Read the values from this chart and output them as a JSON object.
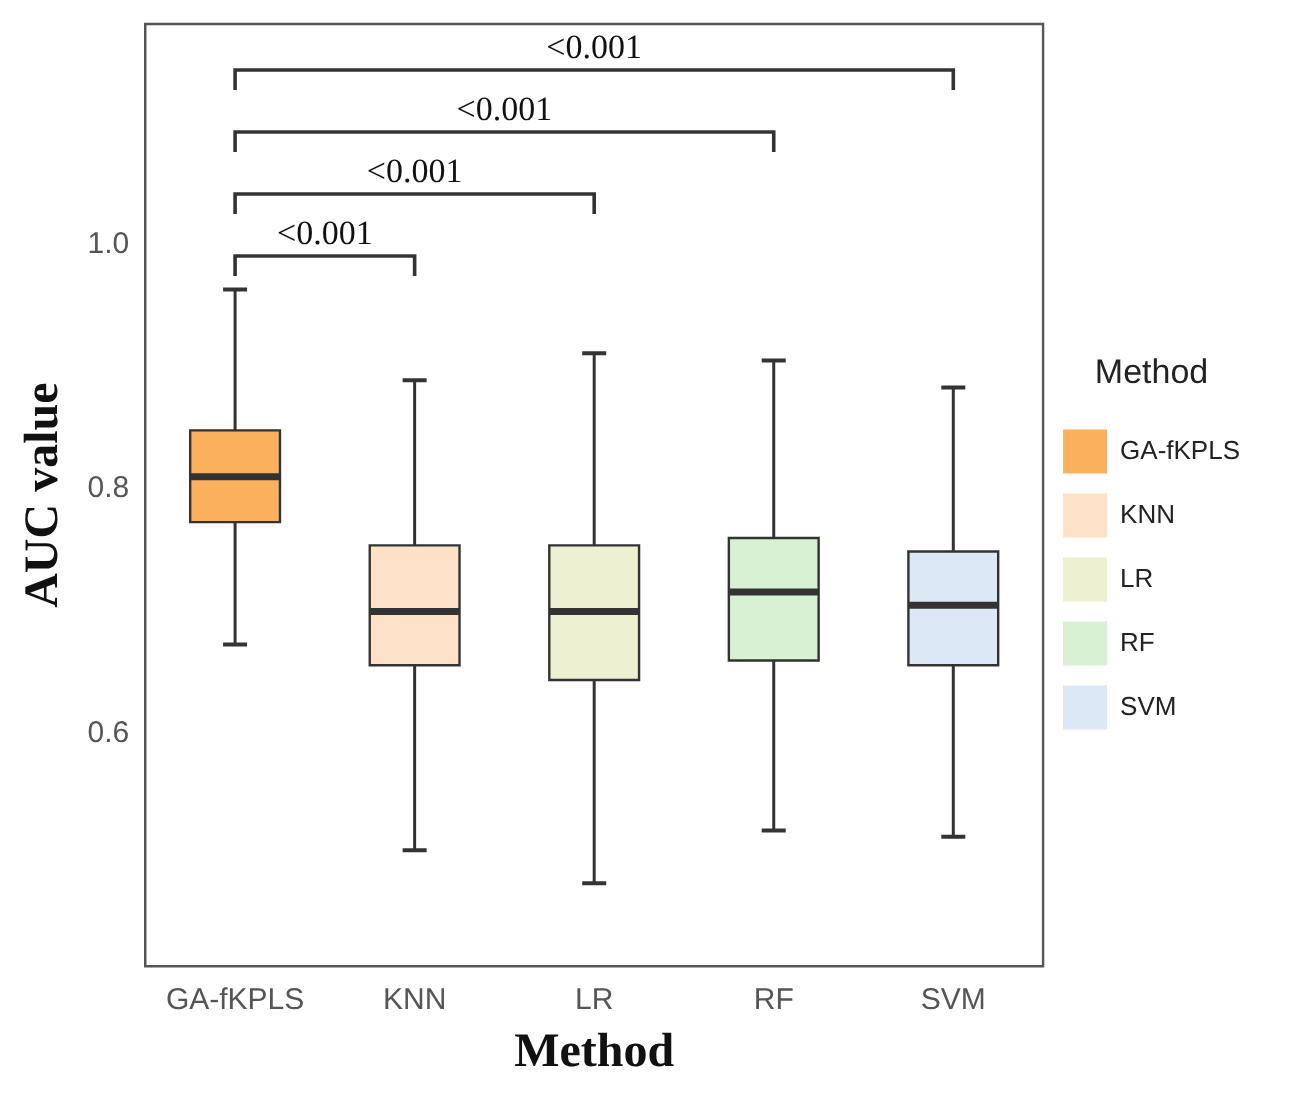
{
  "chart_data": {
    "type": "box",
    "xlabel": "Method",
    "ylabel": "AUC value",
    "legend_title": "Method",
    "legend": "right",
    "grid": false,
    "categories": [
      "GA-fKPLS",
      "KNN",
      "LR",
      "RF",
      "SVM"
    ],
    "series": [
      {
        "name": "GA-fKPLS",
        "color": "#fbb05e",
        "boxes": [
          {
            "low": 0.673,
            "q1": 0.773,
            "median": 0.81,
            "q3": 0.848,
            "high": 0.963
          },
          null,
          null,
          null,
          null
        ]
      },
      {
        "name": "KNN",
        "color": "#fde2c8",
        "boxes": [
          null,
          {
            "low": 0.505,
            "q1": 0.656,
            "median": 0.7,
            "q3": 0.754,
            "high": 0.889
          },
          null,
          null,
          null
        ]
      },
      {
        "name": "LR",
        "color": "#eef0d2",
        "boxes": [
          null,
          null,
          {
            "low": 0.478,
            "q1": 0.644,
            "median": 0.7,
            "q3": 0.754,
            "high": 0.911
          },
          null,
          null
        ]
      },
      {
        "name": "RF",
        "color": "#d8f1d3",
        "boxes": [
          null,
          null,
          null,
          {
            "low": 0.521,
            "q1": 0.66,
            "median": 0.716,
            "q3": 0.76,
            "high": 0.905
          },
          null
        ]
      },
      {
        "name": "SVM",
        "color": "#dde8f6",
        "boxes": [
          null,
          null,
          null,
          null,
          {
            "low": 0.516,
            "q1": 0.656,
            "median": 0.705,
            "q3": 0.749,
            "high": 0.883
          }
        ]
      }
    ],
    "ylim": [
      0.41,
      1.18
    ],
    "yticks": [
      0.6,
      0.8,
      {
        "value": 1,
        "label": "1.0"
      }
    ],
    "annotations": [
      "<0.001",
      "<0.001",
      "<0.001",
      "<0.001"
    ]
  }
}
